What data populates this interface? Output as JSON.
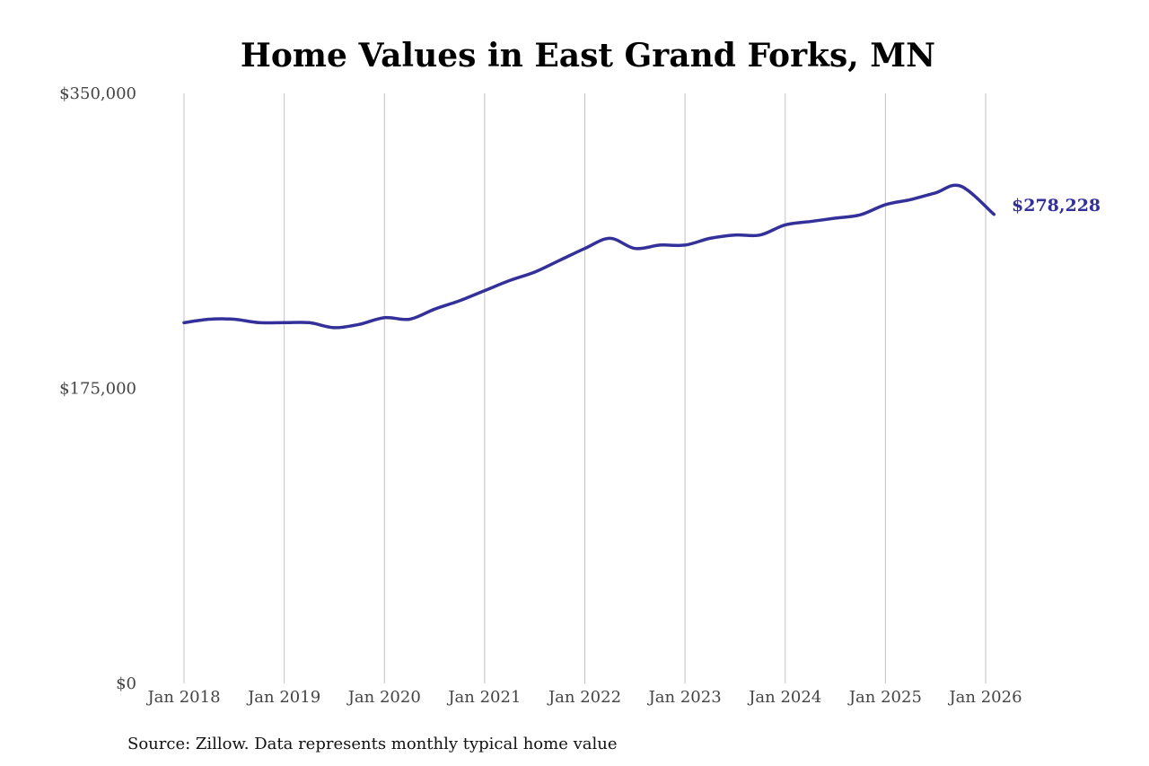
{
  "colors": {
    "line": "#33309a",
    "grid": "#c2c2c2",
    "text": "#444444"
  },
  "chart_data": {
    "type": "line",
    "title": "Home Values in East Grand Forks, MN",
    "xlabel": "",
    "ylabel": "",
    "source": "Source: Zillow. Data represents monthly typical home value",
    "ylim": [
      0,
      350000
    ],
    "xlim": [
      "2018-01",
      "2026-01"
    ],
    "grid": "vertical",
    "legend": "none",
    "y_ticks": [
      {
        "value": 0,
        "label": "$0"
      },
      {
        "value": 175000,
        "label": "$175,000"
      },
      {
        "value": 350000,
        "label": "$350,000"
      }
    ],
    "x_ticks": [
      {
        "date": "2018-01",
        "label": "Jan 2018"
      },
      {
        "date": "2019-01",
        "label": "Jan 2019"
      },
      {
        "date": "2020-01",
        "label": "Jan 2020"
      },
      {
        "date": "2021-01",
        "label": "Jan 2021"
      },
      {
        "date": "2022-01",
        "label": "Jan 2022"
      },
      {
        "date": "2023-01",
        "label": "Jan 2023"
      },
      {
        "date": "2024-01",
        "label": "Jan 2024"
      },
      {
        "date": "2025-01",
        "label": "Jan 2025"
      },
      {
        "date": "2026-01",
        "label": "Jan 2026"
      }
    ],
    "end_label": "$278,228",
    "series": [
      {
        "x": [
          "2018-01",
          "2018-04",
          "2018-07",
          "2018-10",
          "2019-01",
          "2019-04",
          "2019-07",
          "2019-10",
          "2020-01",
          "2020-04",
          "2020-07",
          "2020-10",
          "2021-01",
          "2021-04",
          "2021-07",
          "2021-10",
          "2022-01",
          "2022-04",
          "2022-07",
          "2022-10",
          "2023-01",
          "2023-04",
          "2023-07",
          "2023-10",
          "2024-01",
          "2024-04",
          "2024-07",
          "2024-10",
          "2025-01",
          "2025-04",
          "2025-07",
          "2025-10",
          "2026-02"
        ],
        "values": [
          214000,
          216000,
          216000,
          214000,
          214000,
          214000,
          211000,
          213000,
          217000,
          216000,
          222000,
          227000,
          233000,
          239000,
          244000,
          251000,
          258000,
          264000,
          258000,
          260000,
          260000,
          264000,
          266000,
          266000,
          272000,
          274000,
          276000,
          278000,
          284000,
          287000,
          291000,
          295000,
          278228
        ]
      }
    ]
  }
}
